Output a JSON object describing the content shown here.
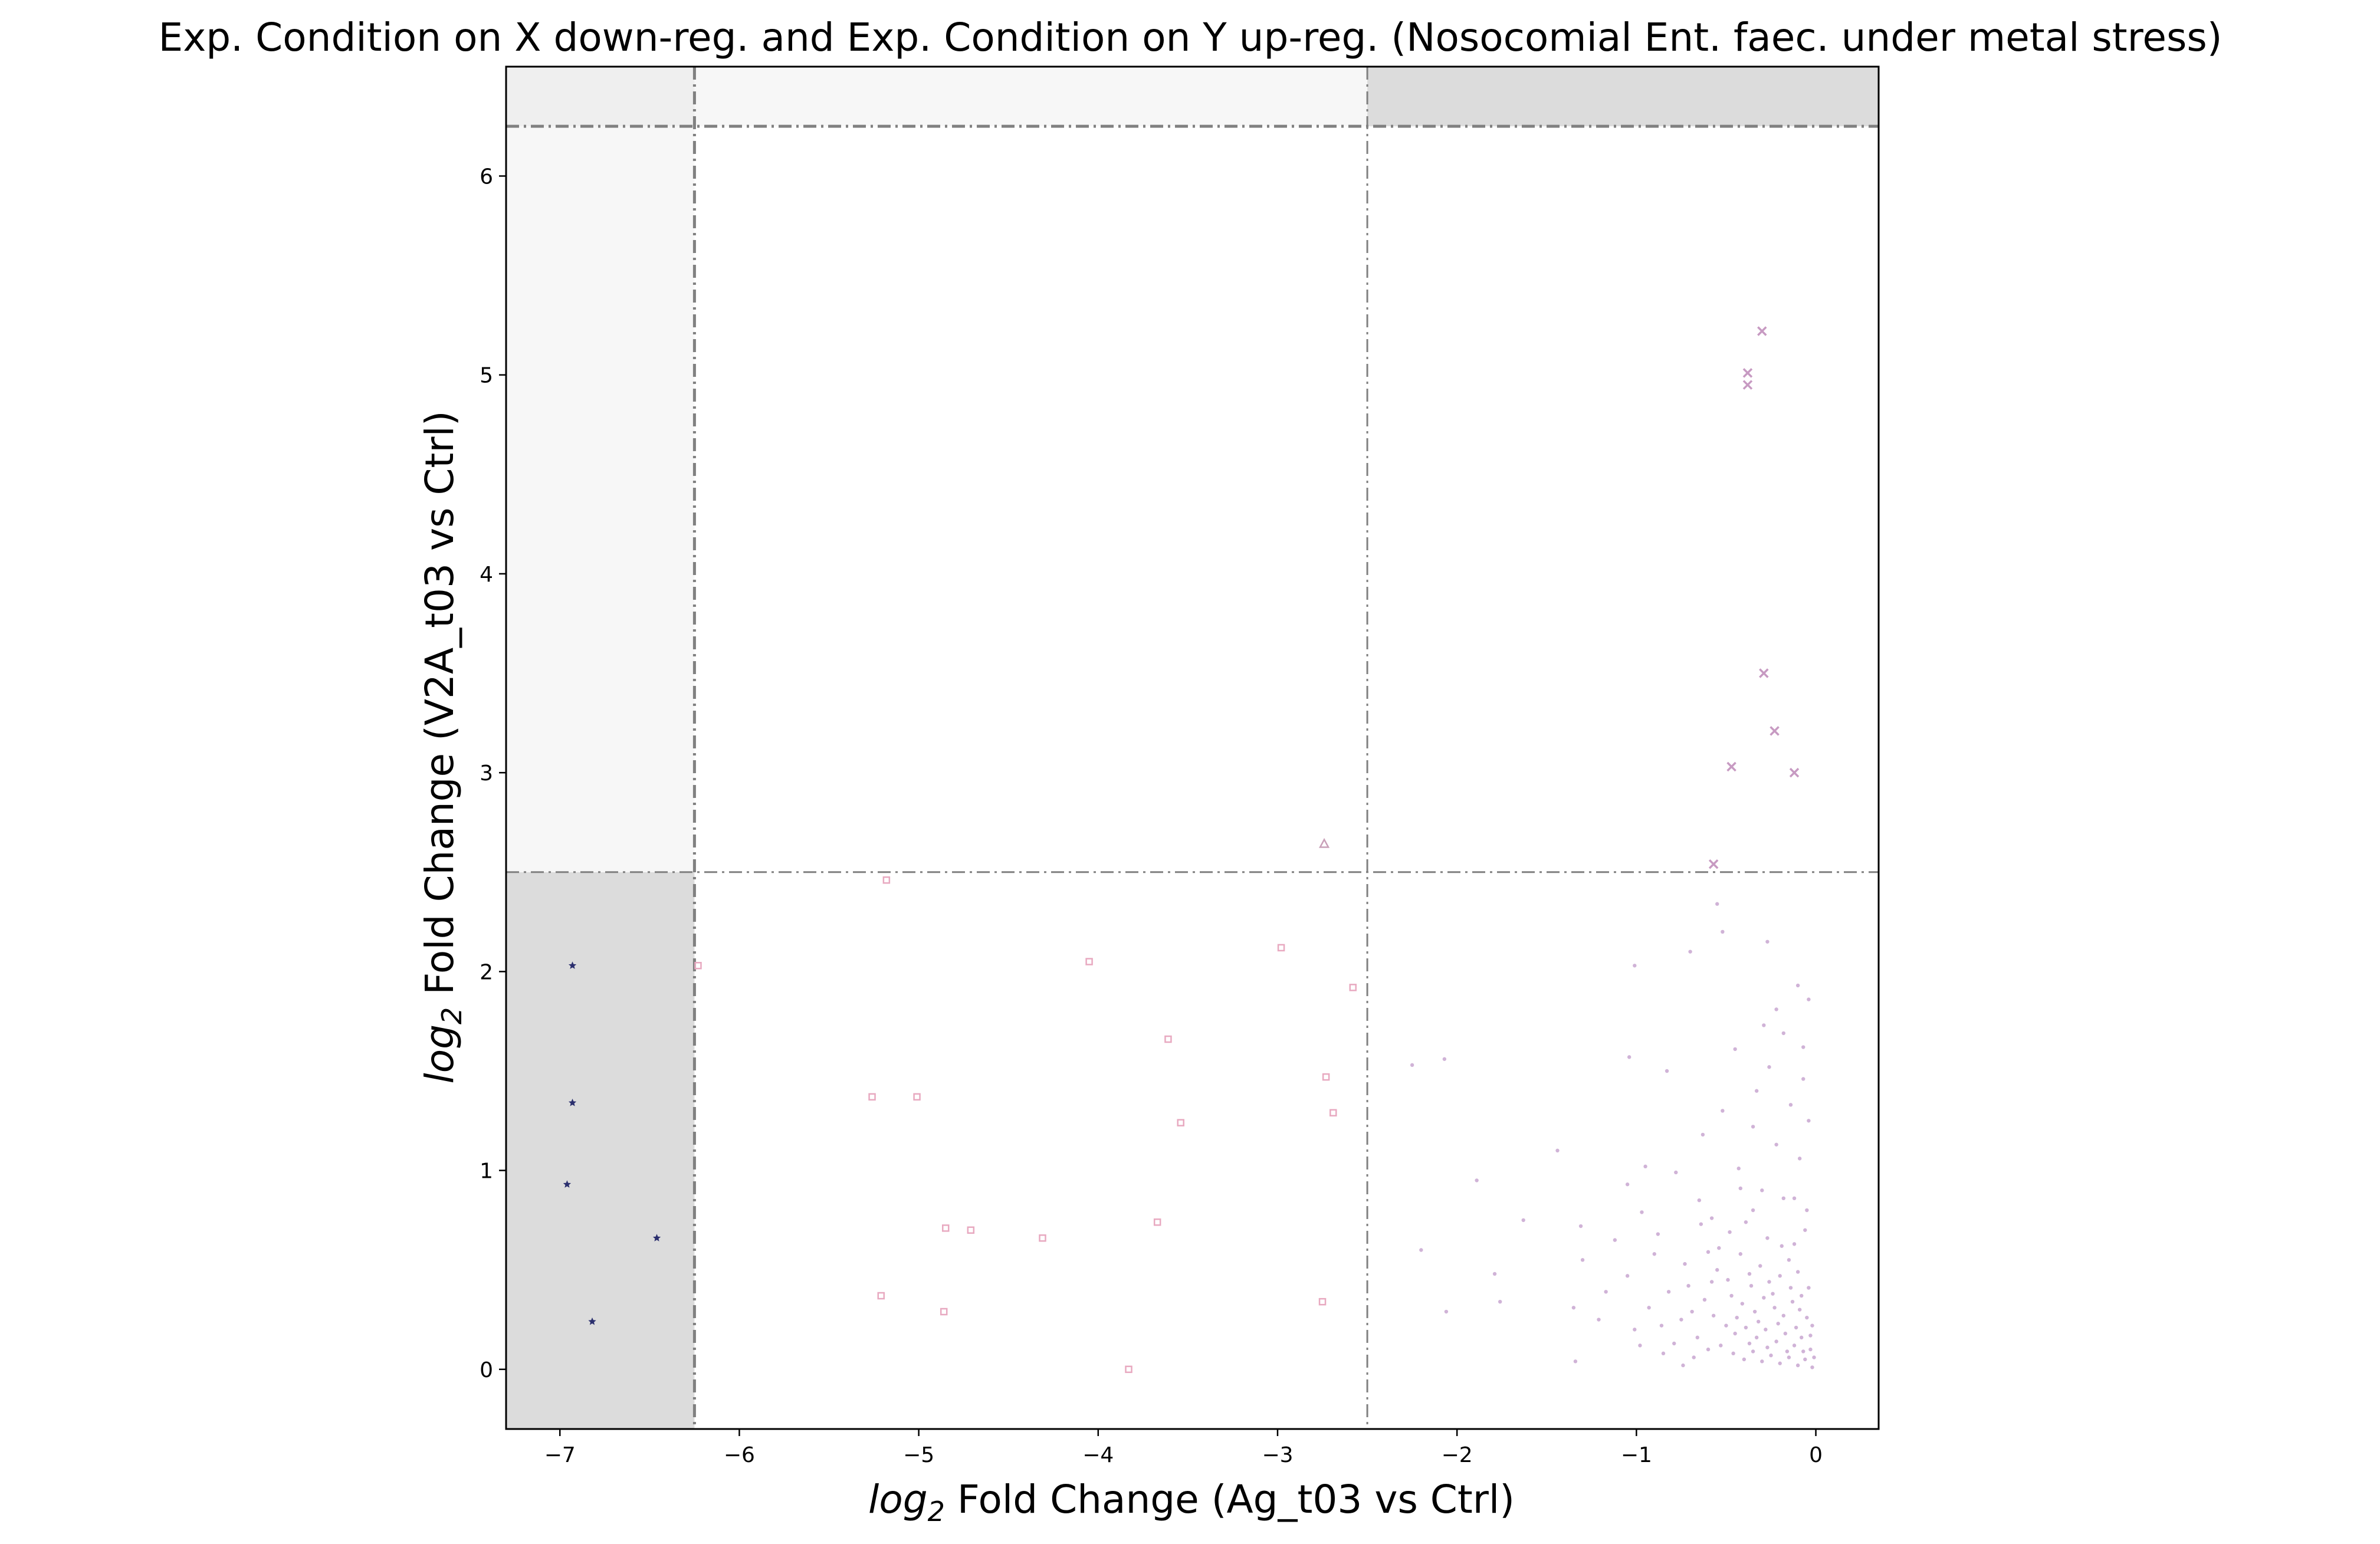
{
  "chart_data": {
    "type": "scatter",
    "title": "Exp. Condition on X down-reg. and Exp. Condition on Y up-reg. (Nosocomial Ent. faec. under metal stress)",
    "xlabel": {
      "prefix": "log",
      "sub": "2",
      "rest": " Fold Change (Ag_t03 vs Ctrl)"
    },
    "ylabel": {
      "prefix": "log",
      "sub": "2",
      "rest": " Fold Change (V2A_t03 vs Ctrl)"
    },
    "xlim": [
      -7.3,
      0.35
    ],
    "ylim": [
      -0.3,
      6.55
    ],
    "xticks": [
      -7,
      -6,
      -5,
      -4,
      -3,
      -2,
      -1,
      0
    ],
    "xtick_labels": [
      "−7",
      "−6",
      "−5",
      "−4",
      "−3",
      "−2",
      "−1",
      "0"
    ],
    "yticks": [
      0,
      1,
      2,
      3,
      4,
      5,
      6
    ],
    "ytick_labels": [
      "0",
      "1",
      "2",
      "3",
      "4",
      "5",
      "6"
    ],
    "grid": false,
    "thresholds": {
      "x": [
        -6.25,
        -2.5
      ],
      "y": [
        2.5,
        6.25
      ]
    },
    "colors": {
      "shade_dark": "#dcdcdc",
      "shade_light": "#f7f7f7",
      "threshold_line": "#808080",
      "star": "#2b2f6e",
      "square": "#e8a9c0",
      "cross": "#c79ac2",
      "dot": "#c8a6d0",
      "triangle": "#c9a0b8"
    },
    "series": [
      {
        "marker": "star",
        "points": [
          [
            -6.93,
            2.03
          ],
          [
            -6.93,
            1.34
          ],
          [
            -6.96,
            0.93
          ],
          [
            -6.46,
            0.66
          ],
          [
            -6.82,
            0.24
          ]
        ]
      },
      {
        "marker": "square",
        "points": [
          [
            -5.18,
            2.46
          ],
          [
            -4.05,
            2.05
          ],
          [
            -2.98,
            2.12
          ],
          [
            -2.58,
            1.92
          ],
          [
            -3.61,
            1.66
          ],
          [
            -2.73,
            1.47
          ],
          [
            -5.26,
            1.37
          ],
          [
            -5.01,
            1.37
          ],
          [
            -3.54,
            1.24
          ],
          [
            -2.69,
            1.29
          ],
          [
            -4.85,
            0.71
          ],
          [
            -4.71,
            0.7
          ],
          [
            -4.31,
            0.66
          ],
          [
            -3.67,
            0.74
          ],
          [
            -5.21,
            0.37
          ],
          [
            -4.86,
            0.29
          ],
          [
            -2.75,
            0.34
          ],
          [
            -3.83,
            0.0
          ],
          [
            -6.23,
            2.03
          ]
        ]
      },
      {
        "marker": "cross",
        "points": [
          [
            -0.3,
            5.22
          ],
          [
            -0.38,
            5.01
          ],
          [
            -0.38,
            4.95
          ],
          [
            -0.29,
            3.5
          ],
          [
            -0.23,
            3.21
          ],
          [
            -0.47,
            3.03
          ],
          [
            -0.12,
            3.0
          ],
          [
            -0.57,
            2.54
          ]
        ]
      },
      {
        "marker": "triangle",
        "points": [
          [
            -2.74,
            2.64
          ]
        ]
      },
      {
        "marker": "dot",
        "points": [
          [
            -0.55,
            2.34
          ],
          [
            -0.52,
            2.2
          ],
          [
            -0.7,
            2.1
          ],
          [
            -1.01,
            2.03
          ],
          [
            -0.27,
            2.15
          ],
          [
            -0.22,
            1.81
          ],
          [
            -0.1,
            1.93
          ],
          [
            -0.29,
            1.73
          ],
          [
            -0.45,
            1.61
          ],
          [
            -0.83,
            1.5
          ],
          [
            -1.04,
            1.57
          ],
          [
            -2.07,
            1.56
          ],
          [
            -2.25,
            1.53
          ],
          [
            -0.07,
            1.62
          ],
          [
            -0.33,
            1.4
          ],
          [
            -0.52,
            1.3
          ],
          [
            -0.63,
            1.18
          ],
          [
            -0.04,
            1.25
          ],
          [
            -1.44,
            1.1
          ],
          [
            -0.95,
            1.02
          ],
          [
            -0.78,
            0.99
          ],
          [
            -1.05,
            0.93
          ],
          [
            -1.89,
            0.95
          ],
          [
            -0.42,
            0.91
          ],
          [
            -0.12,
            0.86
          ],
          [
            -0.35,
            0.8
          ],
          [
            -1.31,
            0.72
          ],
          [
            -1.63,
            0.75
          ],
          [
            -0.64,
            0.73
          ],
          [
            -0.54,
            0.61
          ],
          [
            -2.2,
            0.6
          ],
          [
            -0.9,
            0.58
          ],
          [
            -1.3,
            0.55
          ],
          [
            -1.79,
            0.48
          ],
          [
            -1.05,
            0.47
          ],
          [
            -0.58,
            0.44
          ],
          [
            -2.06,
            0.29
          ],
          [
            -1.76,
            0.34
          ],
          [
            -1.35,
            0.31
          ],
          [
            -1.21,
            0.25
          ],
          [
            -1.01,
            0.2
          ],
          [
            -1.34,
            0.04
          ],
          [
            -0.85,
            0.08
          ],
          [
            -0.6,
            0.1
          ],
          [
            -0.48,
            0.69
          ],
          [
            -0.42,
            0.58
          ],
          [
            -0.37,
            0.48
          ],
          [
            -0.31,
            0.52
          ],
          [
            -0.26,
            0.44
          ],
          [
            -0.19,
            0.62
          ],
          [
            -0.15,
            0.55
          ],
          [
            -0.1,
            0.49
          ],
          [
            -0.06,
            0.7
          ],
          [
            -0.04,
            0.41
          ],
          [
            -0.47,
            0.37
          ],
          [
            -0.41,
            0.33
          ],
          [
            -0.34,
            0.29
          ],
          [
            -0.29,
            0.36
          ],
          [
            -0.23,
            0.31
          ],
          [
            -0.18,
            0.27
          ],
          [
            -0.13,
            0.34
          ],
          [
            -0.09,
            0.3
          ],
          [
            -0.05,
            0.26
          ],
          [
            -0.02,
            0.22
          ],
          [
            -0.5,
            0.22
          ],
          [
            -0.45,
            0.18
          ],
          [
            -0.39,
            0.21
          ],
          [
            -0.33,
            0.16
          ],
          [
            -0.28,
            0.2
          ],
          [
            -0.22,
            0.14
          ],
          [
            -0.17,
            0.18
          ],
          [
            -0.12,
            0.12
          ],
          [
            -0.08,
            0.16
          ],
          [
            -0.03,
            0.1
          ],
          [
            -0.46,
            0.08
          ],
          [
            -0.4,
            0.05
          ],
          [
            -0.35,
            0.09
          ],
          [
            -0.3,
            0.04
          ],
          [
            -0.25,
            0.07
          ],
          [
            -0.2,
            0.03
          ],
          [
            -0.15,
            0.06
          ],
          [
            -0.1,
            0.02
          ],
          [
            -0.06,
            0.05
          ],
          [
            -0.02,
            0.01
          ],
          [
            -0.62,
            0.35
          ],
          [
            -0.57,
            0.27
          ],
          [
            -0.66,
            0.16
          ],
          [
            -0.71,
            0.42
          ],
          [
            -0.75,
            0.25
          ],
          [
            -0.68,
            0.06
          ],
          [
            -0.55,
            0.5
          ],
          [
            -0.6,
            0.59
          ],
          [
            -0.53,
            0.12
          ],
          [
            -0.44,
            0.26
          ],
          [
            -0.37,
            0.13
          ],
          [
            -0.32,
            0.24
          ],
          [
            -0.27,
            0.11
          ],
          [
            -0.21,
            0.23
          ],
          [
            -0.16,
            0.09
          ],
          [
            -0.11,
            0.21
          ],
          [
            -0.07,
            0.09
          ],
          [
            -0.03,
            0.17
          ],
          [
            -0.01,
            0.06
          ],
          [
            -0.14,
            0.41
          ],
          [
            -0.24,
            0.38
          ],
          [
            -0.36,
            0.42
          ],
          [
            -0.49,
            0.45
          ],
          [
            -0.08,
            0.37
          ],
          [
            -0.2,
            0.47
          ],
          [
            -0.12,
            0.63
          ],
          [
            -0.27,
            0.66
          ],
          [
            -0.39,
            0.74
          ],
          [
            -0.05,
            0.8
          ],
          [
            -0.18,
            0.86
          ],
          [
            -0.3,
            0.9
          ],
          [
            -0.43,
            1.01
          ],
          [
            -0.09,
            1.06
          ],
          [
            -0.22,
            1.13
          ],
          [
            -0.35,
            1.22
          ],
          [
            -0.14,
            1.33
          ],
          [
            -0.07,
            1.46
          ],
          [
            -0.26,
            1.52
          ],
          [
            -0.18,
            1.69
          ],
          [
            -0.04,
            1.86
          ],
          [
            -0.97,
            0.79
          ],
          [
            -0.88,
            0.68
          ],
          [
            -0.82,
            0.39
          ],
          [
            -0.93,
            0.31
          ],
          [
            -0.73,
            0.53
          ],
          [
            -0.79,
            0.13
          ],
          [
            -1.12,
            0.65
          ],
          [
            -1.17,
            0.39
          ],
          [
            -0.65,
            0.85
          ],
          [
            -0.58,
            0.76
          ],
          [
            -0.86,
            0.22
          ],
          [
            -0.74,
            0.02
          ],
          [
            -0.69,
            0.29
          ],
          [
            -0.98,
            0.12
          ]
        ]
      }
    ]
  }
}
